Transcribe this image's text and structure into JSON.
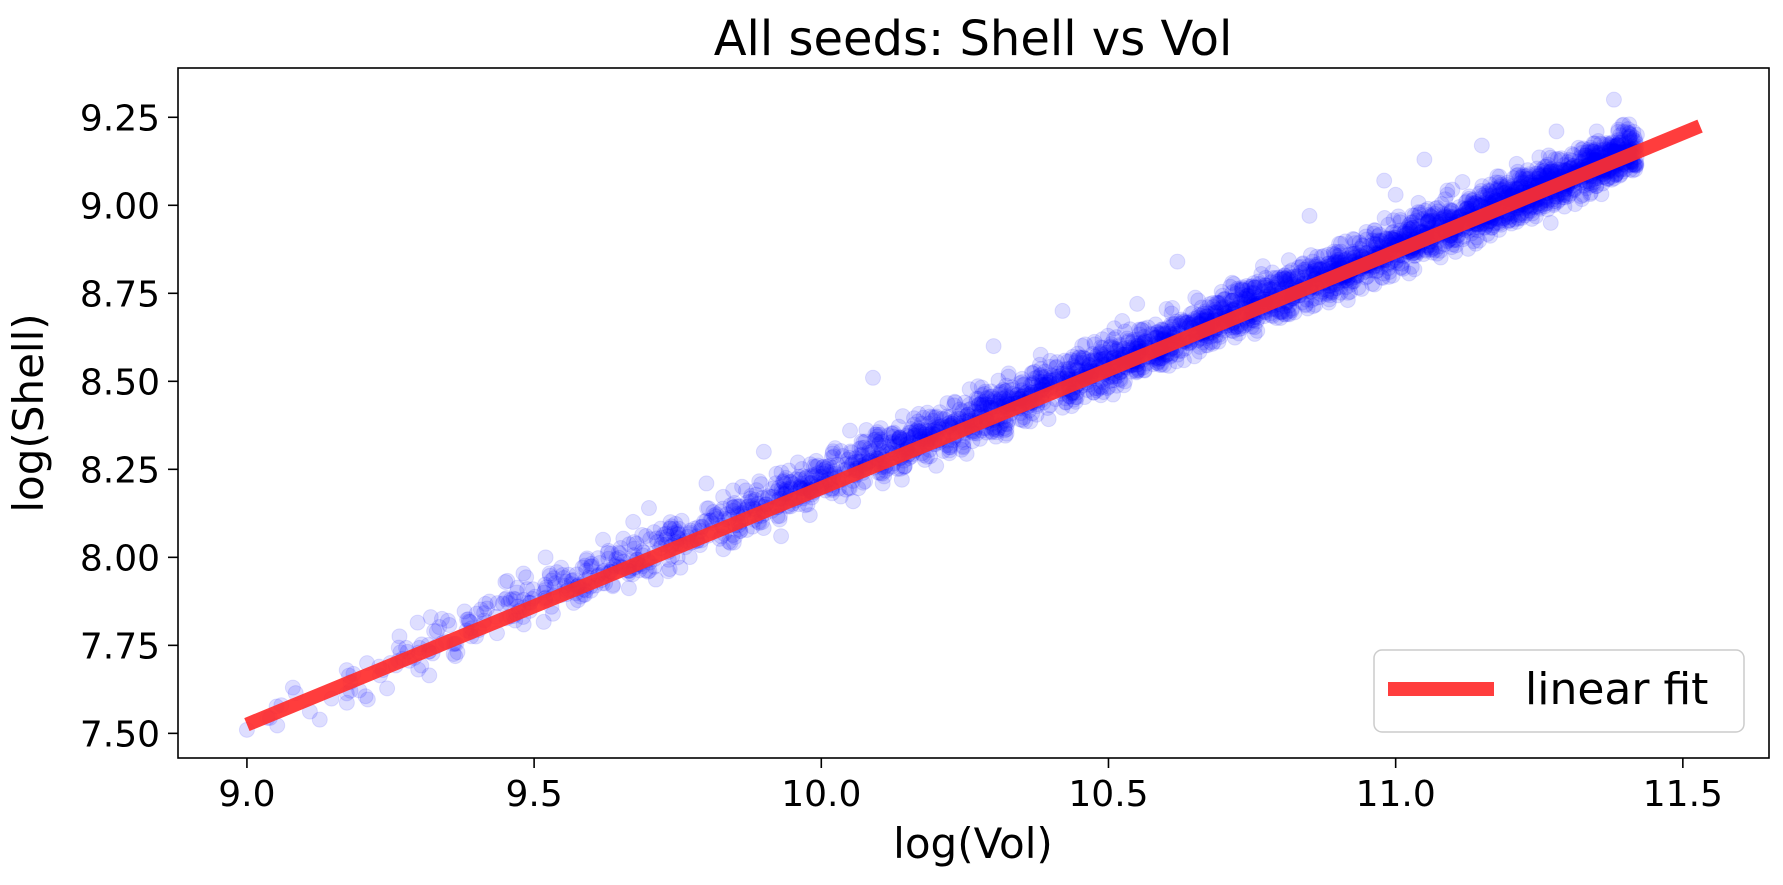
{
  "chart_data": {
    "type": "scatter",
    "title": "All seeds: Shell vs Vol",
    "xlabel": "log(Vol)",
    "ylabel": "log(Shell)",
    "xlim": [
      8.88,
      11.65
    ],
    "ylim": [
      7.43,
      9.39
    ],
    "xticks": [
      "9.0",
      "9.5",
      "10.0",
      "10.5",
      "11.0",
      "11.5"
    ],
    "yticks": [
      "7.50",
      "7.75",
      "8.00",
      "8.25",
      "8.50",
      "8.75",
      "9.00",
      "9.25"
    ],
    "grid": false,
    "legend_position": "bottom-right",
    "series": [
      {
        "kind": "scatter",
        "color": "#0000ff",
        "opacity": 0.13,
        "cloud": {
          "x_min": 9.0,
          "x_max": 11.42,
          "trend": [
            [
              9.0,
              7.52
            ],
            [
              9.5,
              7.88
            ],
            [
              10.0,
              8.22
            ],
            [
              10.5,
              8.55
            ],
            [
              11.0,
              8.88
            ],
            [
              11.4,
              9.15
            ]
          ],
          "spread": 0.05
        },
        "points": [
          [
            9.0,
            7.51
          ],
          [
            9.08,
            7.63
          ],
          [
            9.06,
            7.58
          ],
          [
            9.25,
            7.7
          ],
          [
            9.32,
            7.83
          ],
          [
            9.35,
            7.82
          ],
          [
            9.4,
            7.84
          ],
          [
            9.45,
            7.93
          ],
          [
            9.47,
            7.9
          ],
          [
            9.52,
            8.0
          ],
          [
            9.55,
            7.95
          ],
          [
            9.62,
            8.05
          ],
          [
            9.7,
            8.14
          ],
          [
            9.75,
            8.0
          ],
          [
            9.8,
            8.21
          ],
          [
            9.86,
            8.1
          ],
          [
            9.9,
            8.3
          ],
          [
            9.93,
            8.06
          ],
          [
            9.98,
            8.12
          ],
          [
            10.05,
            8.36
          ],
          [
            10.09,
            8.51
          ],
          [
            10.2,
            8.26
          ],
          [
            10.25,
            8.44
          ],
          [
            10.3,
            8.6
          ],
          [
            10.42,
            8.7
          ],
          [
            10.55,
            8.72
          ],
          [
            10.62,
            8.84
          ],
          [
            10.85,
            8.97
          ],
          [
            10.98,
            9.07
          ],
          [
            11.0,
            9.03
          ],
          [
            11.05,
            9.13
          ],
          [
            11.15,
            9.17
          ],
          [
            11.23,
            9.1
          ],
          [
            11.28,
            9.21
          ],
          [
            11.35,
            9.21
          ],
          [
            11.38,
            9.3
          ],
          [
            11.42,
            9.2
          ],
          [
            11.27,
            8.95
          ],
          [
            11.1,
            8.9
          ],
          [
            10.9,
            8.78
          ]
        ]
      },
      {
        "name": "linear fit",
        "kind": "line",
        "color": "#ff2d2d",
        "opacity": 0.92,
        "x": [
          9.0,
          11.53
        ],
        "y": [
          7.525,
          9.225
        ]
      }
    ]
  }
}
